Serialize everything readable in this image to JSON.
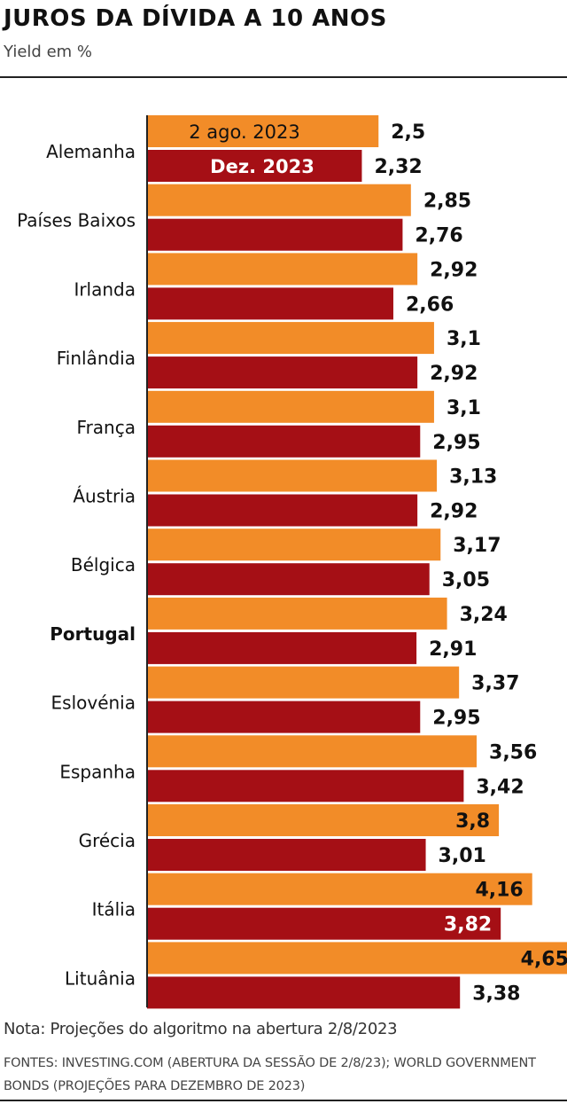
{
  "header": {
    "title": "JUROS DA DÍVIDA A 10 ANOS",
    "subtitle": "Yield em %"
  },
  "footer": {
    "note": "Nota: Projeções do algoritmo na abertura 2/8/2023",
    "sources": "FONTES: INVESTING.COM (ABERTURA DA SESSÃO DE 2/8/23); WORLD GOVERNMENT BONDS (PROJEÇÕES PARA DEZEMBRO DE 2023)"
  },
  "colors": {
    "series_aug": "#f28c28",
    "series_dec": "#a50f15",
    "axis": "#222222",
    "label_dark": "#111111",
    "label_light": "#ffffff"
  },
  "chart_data": {
    "type": "bar",
    "orientation": "horizontal",
    "categories": [
      "Alemanha",
      "Países Baixos",
      "Irlanda",
      "Finlândia",
      "França",
      "Áustria",
      "Bélgica",
      "Portugal",
      "Eslovénia",
      "Espanha",
      "Grécia",
      "Itália",
      "Lituânia"
    ],
    "highlight_category": "Portugal",
    "series": [
      {
        "name": "2 ago. 2023",
        "color": "#f28c28",
        "values": [
          2.5,
          2.85,
          2.92,
          3.1,
          3.1,
          3.13,
          3.17,
          3.24,
          3.37,
          3.56,
          3.8,
          4.16,
          4.65
        ],
        "labels": [
          "2,5",
          "2,85",
          "2,92",
          "3,1",
          "3,1",
          "3,13",
          "3,17",
          "3,24",
          "3,37",
          "3,56",
          "3,8",
          "4,16",
          "4,65"
        ]
      },
      {
        "name": "Dez. 2023",
        "color": "#a50f15",
        "values": [
          2.32,
          2.76,
          2.66,
          2.92,
          2.95,
          2.92,
          3.05,
          2.91,
          2.95,
          3.42,
          3.01,
          3.82,
          3.38
        ],
        "labels": [
          "2,32",
          "2,76",
          "2,66",
          "2,92",
          "2,95",
          "2,92",
          "3,05",
          "2,91",
          "2,95",
          "3,42",
          "3,01",
          "3,82",
          "3,38"
        ]
      }
    ],
    "xlim": [
      0,
      4.65
    ],
    "grid": false,
    "legend": "inside first bars"
  }
}
